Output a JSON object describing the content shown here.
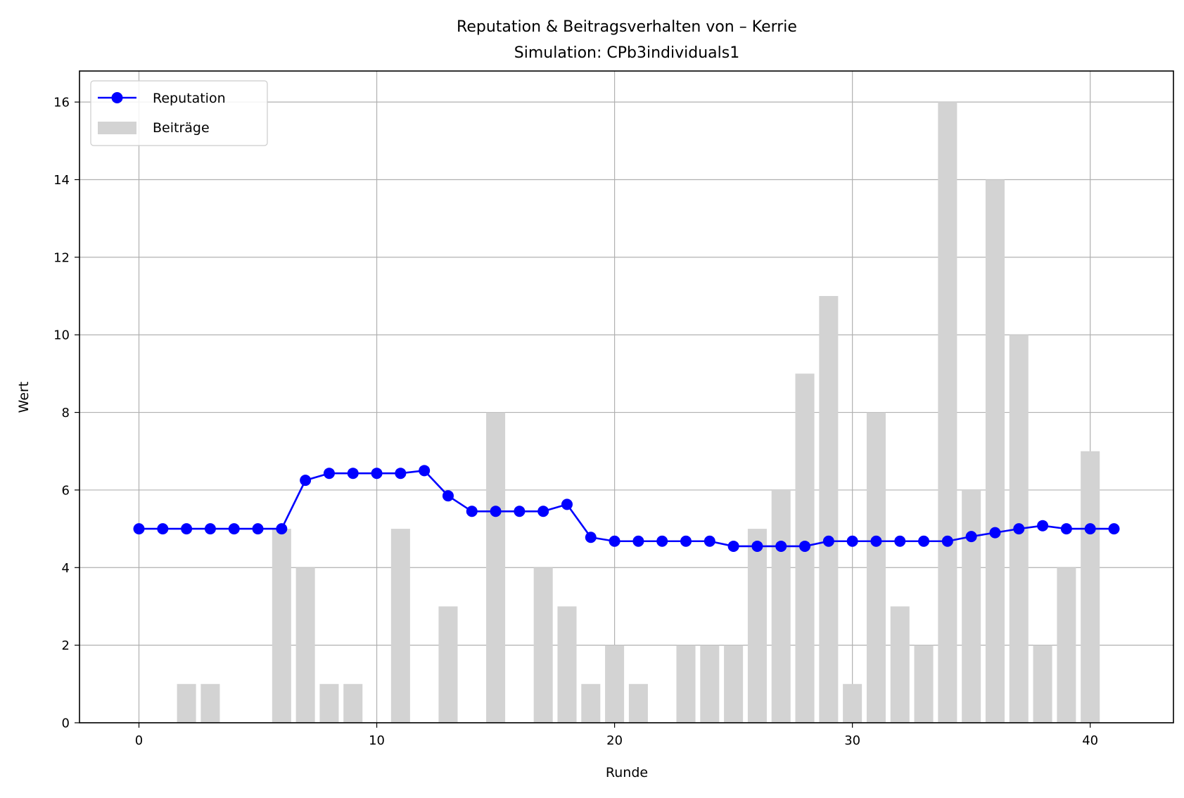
{
  "chart_data": {
    "type": "bar",
    "title": "Reputation & Beitragsverhalten von – Kerrie",
    "subtitle": "Simulation: CPb3individuals1",
    "xlabel": "Runde",
    "ylabel": "Wert",
    "xlim": [
      -2.5,
      43.5
    ],
    "ylim": [
      0,
      16.8
    ],
    "x_ticks": [
      0,
      10,
      20,
      30,
      40
    ],
    "y_ticks": [
      0,
      2,
      4,
      6,
      8,
      10,
      12,
      14,
      16
    ],
    "grid": true,
    "legend_position": "top-left",
    "x": [
      0,
      1,
      2,
      3,
      4,
      5,
      6,
      7,
      8,
      9,
      10,
      11,
      12,
      13,
      14,
      15,
      16,
      17,
      18,
      19,
      20,
      21,
      22,
      23,
      24,
      25,
      26,
      27,
      28,
      29,
      30,
      31,
      32,
      33,
      34,
      35,
      36,
      37,
      38,
      39,
      40,
      41
    ],
    "series": [
      {
        "name": "Beiträge",
        "type": "bar",
        "color": "#d3d3d3",
        "values": [
          0,
          0,
          1,
          1,
          0,
          0,
          5,
          4,
          1,
          1,
          0,
          5,
          0,
          3,
          0,
          8,
          0,
          4,
          3,
          1,
          2,
          1,
          0,
          2,
          2,
          2,
          5,
          6,
          9,
          11,
          1,
          8,
          3,
          2,
          16,
          6,
          14,
          10,
          2,
          4,
          7,
          0
        ]
      },
      {
        "name": "Reputation",
        "type": "line",
        "color": "#0000ff",
        "marker": "circle",
        "values": [
          5.0,
          5.0,
          5.0,
          5.0,
          5.0,
          5.0,
          5.0,
          6.25,
          6.43,
          6.43,
          6.43,
          6.43,
          6.5,
          5.85,
          5.45,
          5.45,
          5.45,
          5.45,
          5.63,
          4.78,
          4.68,
          4.68,
          4.68,
          4.68,
          4.68,
          4.55,
          4.55,
          4.55,
          4.55,
          4.68,
          4.68,
          4.68,
          4.68,
          4.68,
          4.68,
          4.8,
          4.9,
          5.0,
          5.08,
          5.0,
          5.0,
          5.0
        ]
      }
    ]
  }
}
